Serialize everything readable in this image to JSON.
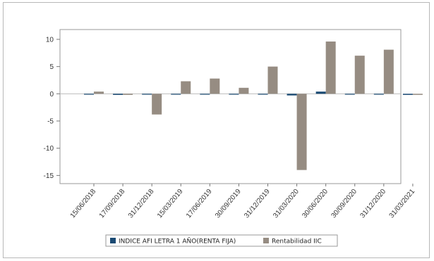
{
  "chart_data": {
    "type": "bar",
    "categories": [
      "15/06/2018",
      "17/09/2018",
      "31/12/2018",
      "15/03/2019",
      "17/06/2019",
      "30/09/2019",
      "31/12/2019",
      "31/03/2020",
      "30/06/2020",
      "30/09/2020",
      "31/12/2020",
      "31/03/2021"
    ],
    "series": [
      {
        "name": "INDICE AFI LETRA 1 AÑO(RENTA FIJA)",
        "color": "#1a4a73",
        "values": [
          -0.1,
          -0.2,
          -0.1,
          0.0,
          -0.05,
          0.0,
          -0.1,
          -0.3,
          0.4,
          0.0,
          -0.05,
          -0.2
        ]
      },
      {
        "name": "Rentabilidad IIC",
        "color": "#968c82",
        "values": [
          0.4,
          -0.2,
          -3.8,
          2.3,
          2.8,
          1.1,
          5.0,
          -14.0,
          9.6,
          7.0,
          8.1,
          -0.2
        ]
      }
    ],
    "yticks": [
      -15,
      -10,
      -5,
      0,
      5,
      10
    ],
    "ylim": [
      -16.5,
      11.8
    ],
    "title": "",
    "xlabel": "",
    "ylabel": "",
    "grid": false,
    "legend": "bottom"
  }
}
